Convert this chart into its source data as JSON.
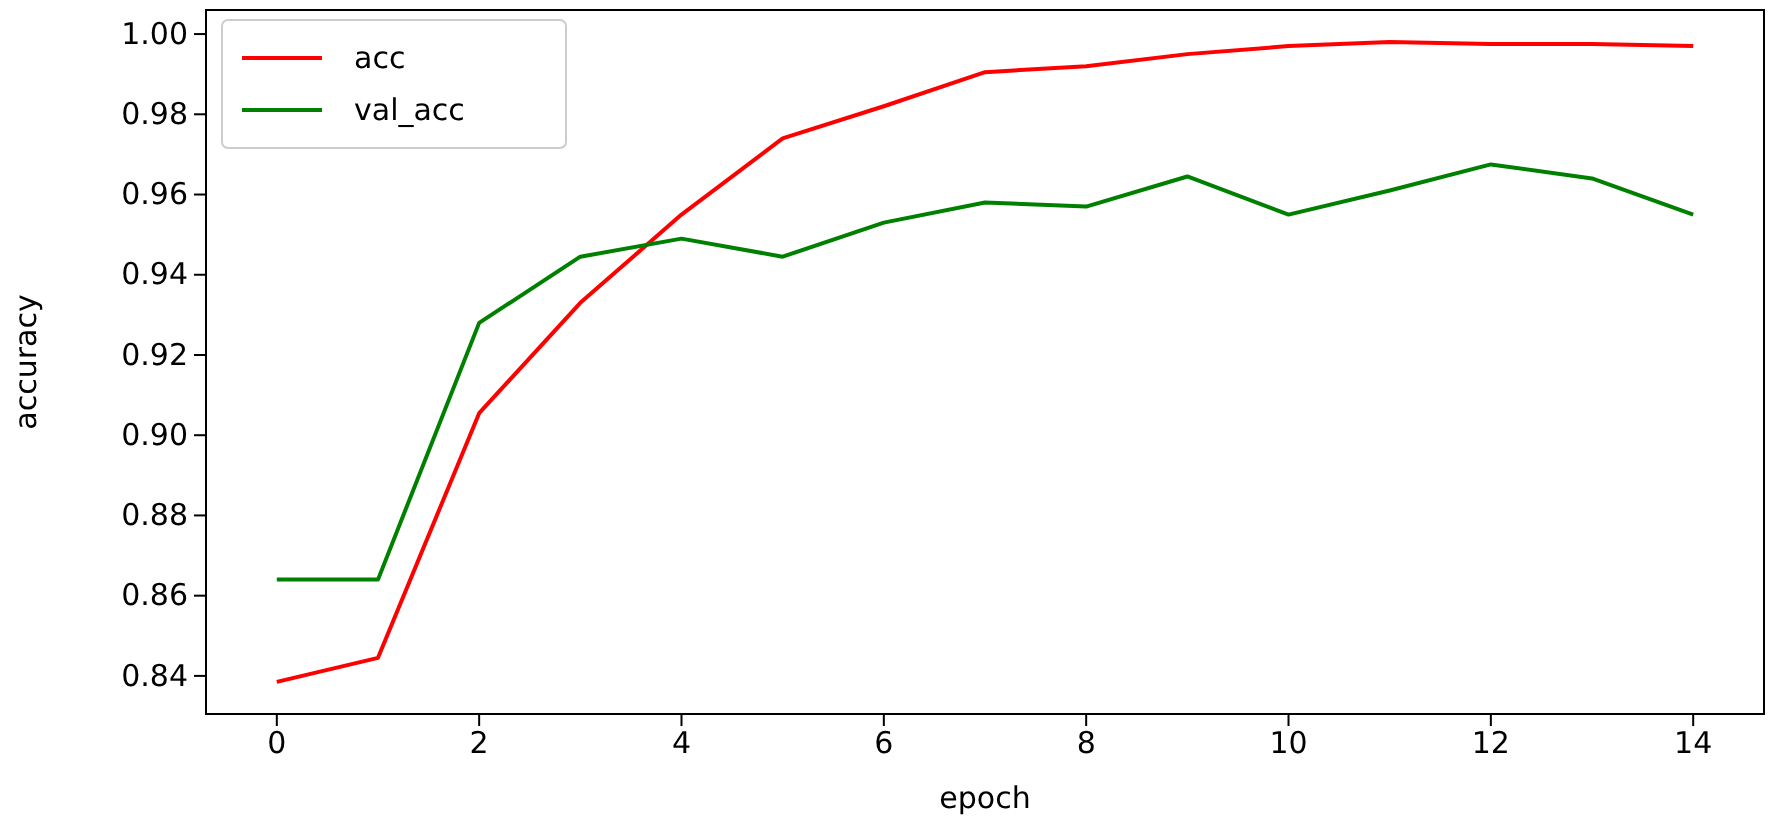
{
  "chart_data": {
    "type": "line",
    "xlabel": "epoch",
    "ylabel": "accuracy",
    "x": [
      0,
      1,
      2,
      3,
      4,
      5,
      6,
      7,
      8,
      9,
      10,
      11,
      12,
      13,
      14
    ],
    "series": [
      {
        "name": "acc",
        "color": "#ff0000",
        "values": [
          0.8385,
          0.8445,
          0.9055,
          0.933,
          0.955,
          0.974,
          0.982,
          0.9905,
          0.992,
          0.995,
          0.997,
          0.998,
          0.9975,
          0.9975,
          0.997
        ]
      },
      {
        "name": "val_acc",
        "color": "#008000",
        "values": [
          0.864,
          0.864,
          0.928,
          0.9445,
          0.949,
          0.9445,
          0.953,
          0.958,
          0.957,
          0.9645,
          0.955,
          0.961,
          0.9675,
          0.964,
          0.955
        ]
      }
    ],
    "xlim": [
      -0.7,
      14.7
    ],
    "xticks": [
      0,
      2,
      4,
      6,
      8,
      10,
      12,
      14
    ],
    "ylim": [
      0.8305,
      1.006
    ],
    "yticks": [
      {
        "value": 0.84,
        "label": "0.84"
      },
      {
        "value": 0.86,
        "label": "0.86"
      },
      {
        "value": 0.88,
        "label": "0.88"
      },
      {
        "value": 0.9,
        "label": "0.90"
      },
      {
        "value": 0.92,
        "label": "0.92"
      },
      {
        "value": 0.94,
        "label": "0.94"
      },
      {
        "value": 0.96,
        "label": "0.96"
      },
      {
        "value": 0.98,
        "label": "0.98"
      },
      {
        "value": 1.0,
        "label": "1.00"
      }
    ],
    "legend": "top left",
    "line_style": "solid"
  }
}
